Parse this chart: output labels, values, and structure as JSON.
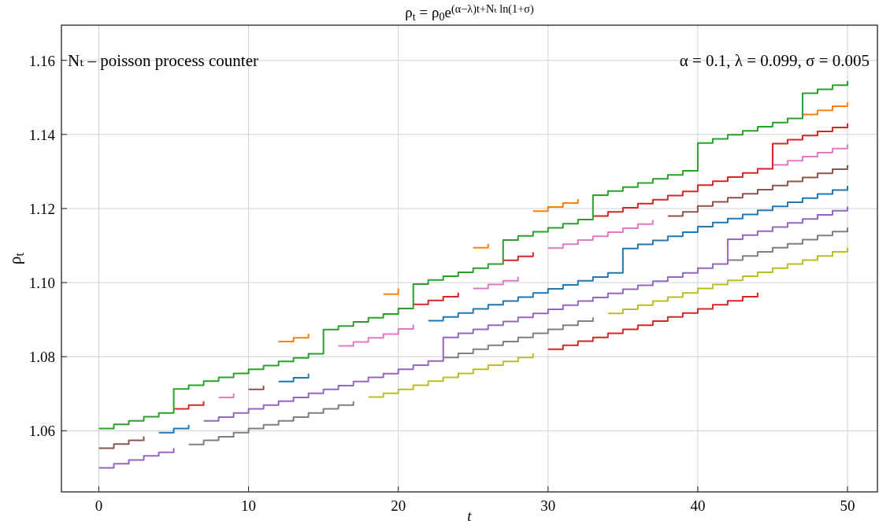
{
  "chart_data": {
    "type": "step",
    "title": "ρ$_{t}$ = ρ$_{0}$e$^{(α−λ)t+Nₜ ln(1+σ)}$",
    "xlabel": "t",
    "ylabel": "ρ$_{t}$",
    "annotations": [
      "Nₜ – poisson process counter",
      "α = 0.1, λ = 0.099, σ = 0.005"
    ],
    "x": [
      0,
      1,
      2,
      3,
      4,
      5,
      6,
      7,
      8,
      9,
      10,
      11,
      12,
      13,
      14,
      15,
      16,
      17,
      18,
      19,
      20,
      21,
      22,
      23,
      24,
      25,
      26,
      27,
      28,
      29,
      30,
      31,
      32,
      33,
      34,
      35,
      36,
      37,
      38,
      39,
      40,
      41,
      42,
      43,
      44,
      45,
      46,
      47,
      48,
      49,
      50
    ],
    "xlim": [
      -2.5,
      52
    ],
    "xticks": [
      0,
      10,
      20,
      30,
      40,
      50
    ],
    "ylim": [
      1.0435,
      1.1695
    ],
    "yticks": [
      1.06,
      1.08,
      {
        "value": 1.1,
        "label": "1.10"
      },
      1.12,
      1.14,
      1.16
    ],
    "grid": true,
    "series": [
      {
        "color": "#d62728",
        "values": [
          null,
          null,
          null,
          null,
          null,
          null,
          null,
          null,
          null,
          null,
          null,
          null,
          null,
          null,
          null,
          null,
          null,
          null,
          null,
          null,
          null,
          null,
          null,
          null,
          null,
          null,
          null,
          null,
          null,
          null,
          1.082,
          1.0831,
          1.0842,
          1.0852,
          1.0863,
          1.0874,
          1.0885,
          1.0896,
          1.0907,
          1.0918,
          1.0929,
          1.094,
          1.0951,
          1.0962,
          1.0973,
          null,
          null,
          null,
          null,
          null,
          null
        ]
      },
      {
        "color": "#bcbd22",
        "values": [
          null,
          null,
          null,
          null,
          null,
          null,
          null,
          null,
          null,
          null,
          null,
          null,
          null,
          null,
          null,
          null,
          null,
          null,
          1.0691,
          1.0701,
          1.0712,
          1.0723,
          1.0734,
          1.0744,
          1.0755,
          1.0766,
          1.0777,
          1.0787,
          1.0798,
          1.0809,
          null,
          null,
          null,
          null,
          1.0917,
          1.0928,
          1.0939,
          1.095,
          1.0961,
          1.0972,
          1.0984,
          1.0995,
          1.1006,
          1.1017,
          1.1028,
          1.1039,
          1.105,
          1.1061,
          1.1072,
          1.1083,
          1.1094
        ]
      },
      {
        "color": "#7f7f7f",
        "values": [
          null,
          null,
          null,
          null,
          null,
          null,
          1.0563,
          1.0574,
          1.0584,
          1.0595,
          1.0606,
          1.0616,
          1.0627,
          1.0637,
          1.0648,
          1.0659,
          1.0669,
          1.068,
          null,
          null,
          null,
          null,
          null,
          1.0798,
          1.0809,
          1.082,
          1.0831,
          1.0841,
          1.0852,
          1.0863,
          1.0874,
          1.0885,
          1.0896,
          1.0906,
          null,
          null,
          null,
          null,
          null,
          null,
          null,
          null,
          1.1061,
          1.1072,
          1.1083,
          1.1094,
          1.1105,
          1.1116,
          1.1127,
          1.1138,
          1.1149
        ]
      },
      {
        "color": "#9467bd",
        "values": [
          1.05,
          1.0511,
          1.0521,
          1.0532,
          1.0542,
          1.0553,
          null,
          1.0627,
          1.0637,
          1.0648,
          1.0659,
          1.0669,
          1.068,
          1.069,
          1.0701,
          1.0712,
          1.0722,
          1.0733,
          1.0744,
          1.0754,
          1.0766,
          1.0777,
          1.0788,
          1.0852,
          1.0863,
          1.0874,
          1.0885,
          1.0895,
          1.0906,
          1.0917,
          1.0928,
          1.0939,
          1.095,
          1.096,
          1.0971,
          1.0982,
          1.0993,
          1.1004,
          1.1015,
          1.1026,
          1.1039,
          1.105,
          1.1117,
          1.1128,
          1.1139,
          1.115,
          1.1161,
          1.1172,
          1.1183,
          1.1194,
          1.1205
        ]
      },
      {
        "color": "#1f77b4",
        "values": [
          null,
          null,
          null,
          null,
          1.0595,
          1.0606,
          1.0616,
          null,
          null,
          null,
          null,
          null,
          1.0733,
          1.0743,
          1.0754,
          null,
          null,
          null,
          null,
          null,
          null,
          null,
          1.0897,
          1.0907,
          1.0918,
          1.0929,
          1.094,
          1.095,
          1.0961,
          1.0972,
          1.0983,
          1.0994,
          1.1005,
          1.1015,
          1.1026,
          1.1092,
          1.1103,
          1.1114,
          1.1125,
          1.1136,
          1.1151,
          1.1162,
          1.1173,
          1.1184,
          1.1195,
          1.1206,
          1.1217,
          1.1228,
          1.1239,
          1.125,
          1.1261
        ]
      },
      {
        "color": "#8c564b",
        "values": [
          1.0553,
          1.0564,
          1.0574,
          1.0585,
          null,
          null,
          null,
          null,
          null,
          null,
          1.0712,
          1.0722,
          null,
          null,
          null,
          null,
          null,
          null,
          null,
          null,
          null,
          null,
          null,
          null,
          null,
          null,
          null,
          null,
          null,
          null,
          null,
          null,
          null,
          null,
          null,
          null,
          null,
          null,
          1.118,
          1.1191,
          1.1207,
          1.1218,
          1.1229,
          1.124,
          1.1251,
          1.1262,
          1.1273,
          1.1284,
          1.1295,
          1.1306,
          1.1317
        ]
      },
      {
        "color": "#e377c2",
        "values": [
          null,
          null,
          null,
          null,
          null,
          null,
          null,
          null,
          1.069,
          1.0701,
          null,
          null,
          null,
          null,
          null,
          null,
          1.0829,
          1.084,
          1.0851,
          1.0861,
          1.0875,
          1.0886,
          null,
          null,
          null,
          1.0984,
          1.0995,
          1.1005,
          1.1016,
          null,
          1.1093,
          1.1104,
          1.1115,
          1.1125,
          1.1136,
          1.1147,
          1.1158,
          1.1169,
          null,
          null,
          null,
          null,
          null,
          null,
          null,
          1.1318,
          1.1329,
          1.134,
          1.1351,
          1.1362,
          1.1373
        ]
      },
      {
        "color": "#d62728",
        "values": [
          null,
          null,
          null,
          null,
          null,
          1.0659,
          1.0669,
          1.068,
          null,
          null,
          null,
          null,
          null,
          null,
          null,
          null,
          null,
          null,
          null,
          null,
          null,
          1.0941,
          1.0952,
          1.0962,
          1.0973,
          null,
          null,
          1.106,
          1.1071,
          1.1082,
          null,
          null,
          null,
          1.118,
          1.1191,
          1.1202,
          1.1213,
          1.1224,
          1.1235,
          1.1246,
          1.1263,
          1.1274,
          1.1285,
          1.1296,
          1.1307,
          1.1375,
          1.1386,
          1.1397,
          1.1408,
          1.1419,
          1.143
        ]
      },
      {
        "color": "#ff7f0e",
        "values": [
          null,
          null,
          null,
          null,
          null,
          null,
          null,
          null,
          null,
          null,
          null,
          null,
          1.0841,
          1.0851,
          1.0862,
          null,
          null,
          null,
          null,
          1.0969,
          1.0985,
          null,
          null,
          null,
          null,
          1.1094,
          1.1105,
          null,
          null,
          1.1193,
          1.1204,
          1.1215,
          1.1226,
          null,
          null,
          null,
          null,
          null,
          null,
          null,
          null,
          null,
          null,
          null,
          null,
          null,
          null,
          1.1454,
          1.1465,
          1.1476,
          1.1487
        ]
      },
      {
        "color": "#2ca02c",
        "values": [
          1.0606,
          1.0617,
          1.0627,
          1.0638,
          1.0648,
          1.0713,
          1.0723,
          1.0734,
          1.0744,
          1.0755,
          1.0766,
          1.0776,
          1.0787,
          1.0797,
          1.0808,
          1.0873,
          1.0883,
          1.0894,
          1.0905,
          1.0915,
          1.093,
          1.0996,
          1.1007,
          1.1017,
          1.1028,
          1.1039,
          1.105,
          1.1115,
          1.1126,
          1.1137,
          1.1148,
          1.1159,
          1.117,
          1.1236,
          1.1247,
          1.1258,
          1.1269,
          1.128,
          1.1291,
          1.1302,
          1.1377,
          1.1388,
          1.1399,
          1.141,
          1.1421,
          1.1432,
          1.1443,
          1.1511,
          1.1522,
          1.1533,
          1.1544
        ]
      }
    ]
  }
}
